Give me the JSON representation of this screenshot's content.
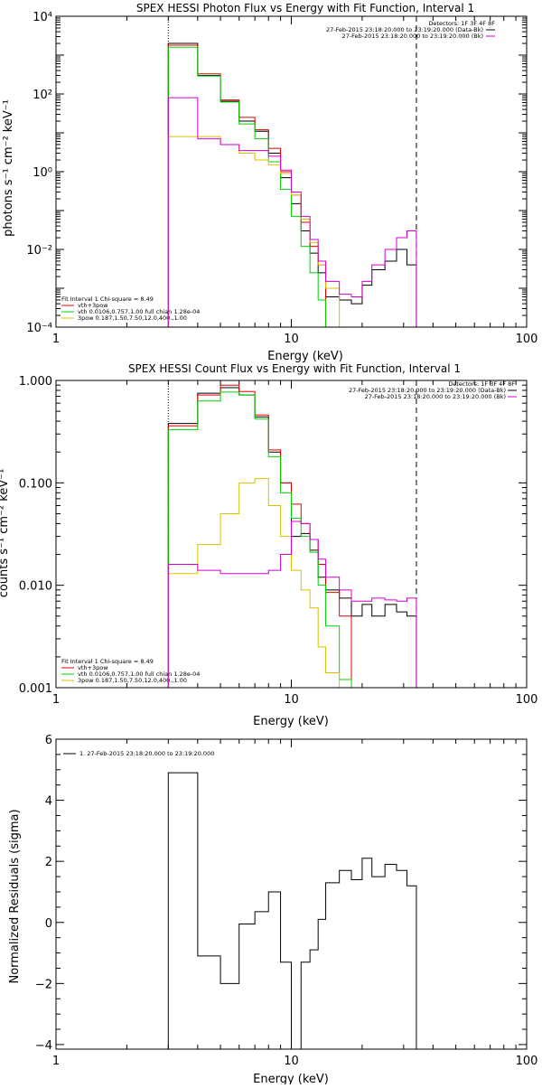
{
  "colors": {
    "black": "#000000",
    "red": "#e00000",
    "green": "#00d000",
    "magenta": "#d000d0",
    "yellow": "#d8c000"
  },
  "chart_data": [
    {
      "type": "line",
      "title": "SPEX HESSI Photon Flux vs Energy with Fit Function, Interval 1",
      "xlabel": "Energy (keV)",
      "ylabel": "photons s⁻¹ cm⁻² keV⁻¹",
      "xscale": "log",
      "yscale": "log",
      "xlim": [
        1,
        100
      ],
      "ylim": [
        0.0001,
        10000
      ],
      "x_ticks": [
        1,
        10,
        100
      ],
      "x_tick_labels": [
        "1",
        "10",
        "100"
      ],
      "y_ticks": [
        0.0001,
        0.01,
        1,
        100,
        10000
      ],
      "y_tick_labels": [
        "10⁻⁴",
        "10⁻²",
        "10⁰",
        "10²",
        "10⁴"
      ],
      "vlines": [
        {
          "x": 3,
          "style": "dotted"
        },
        {
          "x": 34,
          "style": "dashed"
        }
      ],
      "legend_top_right": {
        "header": "Detectors: 1F 3F 4F 8F",
        "entries": [
          {
            "text": "27-Feb-2015 23:18:20.000 to 23:19:20.000 (Data-Bk)",
            "color": "#000000"
          },
          {
            "text": "27-Feb-2015 23:18:20.000 to 23:19:20.000 (Bk)",
            "color": "#d000d0"
          }
        ]
      },
      "legend_bottom_left": {
        "header": "Fit Interval  1    Chi-square = 8.49",
        "entries": [
          {
            "text": "vth+3pow",
            "color": "#e00000"
          },
          {
            "text": "vth 0.0106,0.757,1.00  full chian 1.28e-04",
            "color": "#00d000"
          },
          {
            "text": "3pow 0.187,1.50,7.50,12.0,400.,1.00",
            "color": "#d8c000"
          }
        ]
      },
      "edges": [
        3,
        4,
        5,
        6,
        7,
        8,
        9,
        10,
        11,
        12,
        13,
        14,
        16,
        18,
        20,
        22,
        25,
        28,
        31,
        34
      ],
      "series": [
        {
          "name": "Data-Bk",
          "color": "#000000",
          "values": [
            2000,
            300,
            65,
            20,
            11,
            3,
            0.7,
            0.15,
            0.03,
            0.008,
            0.0025,
            0.0006,
            0.0005,
            0.0004,
            0.0012,
            0.003,
            0.005,
            0.01,
            0.004
          ]
        },
        {
          "name": "vth+3pow",
          "color": "#e00000",
          "values": [
            1800,
            330,
            70,
            25,
            12,
            4,
            1.0,
            0.25,
            0.05,
            0.012,
            0.004
          ]
        },
        {
          "name": "vth",
          "color": "#00d000",
          "values": [
            1600,
            290,
            62,
            17,
            7,
            1.8,
            0.35,
            0.07,
            0.012,
            0.0025,
            0.0005,
            0.0001
          ]
        },
        {
          "name": "3pow",
          "color": "#d8c000",
          "values": [
            8,
            8,
            5,
            3,
            2,
            1.5,
            0.9,
            0.25,
            0.06,
            0.015,
            0.004,
            0.001,
            0.0001
          ]
        },
        {
          "name": "Bk",
          "color": "#d000d0",
          "values": [
            80,
            7,
            5,
            3.5,
            3.5,
            2.5,
            1.1,
            0.3,
            0.07,
            0.018,
            0.005,
            0.0015,
            0.0007,
            0.0006,
            0.0015,
            0.004,
            0.01,
            0.02,
            0.03
          ]
        }
      ]
    },
    {
      "type": "line",
      "title": "SPEX HESSI Count Flux vs Energy with Fit Function, Interval 1",
      "xlabel": "Energy (keV)",
      "ylabel": "counts s⁻¹ cm⁻² keV⁻¹",
      "xscale": "log",
      "yscale": "log",
      "xlim": [
        1,
        100
      ],
      "ylim": [
        0.001,
        1
      ],
      "x_ticks": [
        1,
        10,
        100
      ],
      "x_tick_labels": [
        "1",
        "10",
        "100"
      ],
      "y_ticks": [
        0.001,
        0.01,
        0.1,
        1
      ],
      "y_tick_labels": [
        "0.001",
        "0.010",
        "0.100",
        "1.000"
      ],
      "vlines": [
        {
          "x": 3,
          "style": "dotted"
        },
        {
          "x": 34,
          "style": "dashed"
        }
      ],
      "legend_top_right": {
        "header": "Detectors: 1F 3F 4F 8F",
        "entries": [
          {
            "text": "27-Feb-2015 23:18:20.000 to 23:19:20.000 (Data-Bk)",
            "color": "#000000"
          },
          {
            "text": "27-Feb-2015 23:18:20.000 to 23:19:20.000 (Bk)",
            "color": "#d000d0"
          }
        ]
      },
      "legend_bottom_left": {
        "header": "Fit Interval  1    Chi-square = 8.49",
        "entries": [
          {
            "text": "vth+3pow",
            "color": "#e00000"
          },
          {
            "text": "vth 0.0106,0.757,1.00  full chian 1.28e-04",
            "color": "#00d000"
          },
          {
            "text": "3pow 0.187,1.50,7.50,12.0,400.,1.00",
            "color": "#d8c000"
          }
        ]
      },
      "edges": [
        3,
        4,
        5,
        6,
        7,
        8,
        9,
        10,
        11,
        12,
        13,
        14,
        16,
        18,
        20,
        22,
        25,
        28,
        31,
        34
      ],
      "series": [
        {
          "name": "Data-Bk",
          "color": "#000000",
          "values": [
            0.38,
            0.75,
            0.85,
            0.72,
            0.44,
            0.2,
            0.1,
            0.03,
            0.032,
            0.022,
            0.012,
            0.009,
            0.0075,
            0.005,
            0.0065,
            0.005,
            0.0065,
            0.0055,
            0.005
          ]
        },
        {
          "name": "vth+3pow",
          "color": "#e00000",
          "values": [
            0.36,
            0.72,
            0.9,
            0.78,
            0.46,
            0.21,
            0.1,
            0.062,
            0.04,
            0.028,
            0.016,
            0.0085,
            0.005
          ]
        },
        {
          "name": "vth",
          "color": "#00d000",
          "values": [
            0.33,
            0.63,
            0.77,
            0.72,
            0.42,
            0.18,
            0.08,
            0.045,
            0.03,
            0.021,
            0.01,
            0.004,
            0.0012
          ]
        },
        {
          "name": "3pow",
          "color": "#d8c000",
          "values": [
            0.013,
            0.025,
            0.05,
            0.1,
            0.11,
            0.06,
            0.03,
            0.014,
            0.009,
            0.006,
            0.0025,
            0.0014,
            0.001
          ]
        },
        {
          "name": "Bk",
          "color": "#d000d0",
          "values": [
            0.016,
            0.014,
            0.013,
            0.013,
            0.013,
            0.014,
            0.02,
            0.042,
            0.04,
            0.028,
            0.018,
            0.012,
            0.009,
            0.007,
            0.007,
            0.0075,
            0.0072,
            0.007,
            0.0075
          ]
        }
      ]
    },
    {
      "type": "line",
      "title": "",
      "xlabel": "Energy (keV)",
      "ylabel": "Normalized Residuals (sigma)",
      "xscale": "log",
      "yscale": "linear",
      "xlim": [
        1,
        100
      ],
      "ylim": [
        -4.15,
        6
      ],
      "x_ticks": [
        1,
        10,
        100
      ],
      "x_tick_labels": [
        "1",
        "10",
        "100"
      ],
      "y_ticks": [
        -4,
        -2,
        0,
        2,
        4,
        6
      ],
      "y_tick_labels": [
        "−4",
        "−2",
        "0",
        "2",
        "4",
        "6"
      ],
      "legend_top_left": {
        "entries": [
          {
            "text": "1. 27-Feb-2015 23:18:20.000 to 23:19:20.000",
            "color": "#000000"
          }
        ]
      },
      "edges": [
        3,
        4,
        5,
        6,
        7,
        8,
        9,
        10,
        11,
        12,
        13,
        14,
        16,
        18,
        20,
        22,
        25,
        28,
        31,
        34
      ],
      "series": [
        {
          "name": "1",
          "color": "#000000",
          "values": [
            4.9,
            -1.1,
            -2.0,
            -0.05,
            0.35,
            1.0,
            -1.3,
            -4.15,
            -1.3,
            -0.9,
            0.1,
            1.3,
            1.7,
            1.4,
            2.1,
            1.5,
            1.9,
            1.7,
            1.2
          ]
        }
      ]
    }
  ]
}
